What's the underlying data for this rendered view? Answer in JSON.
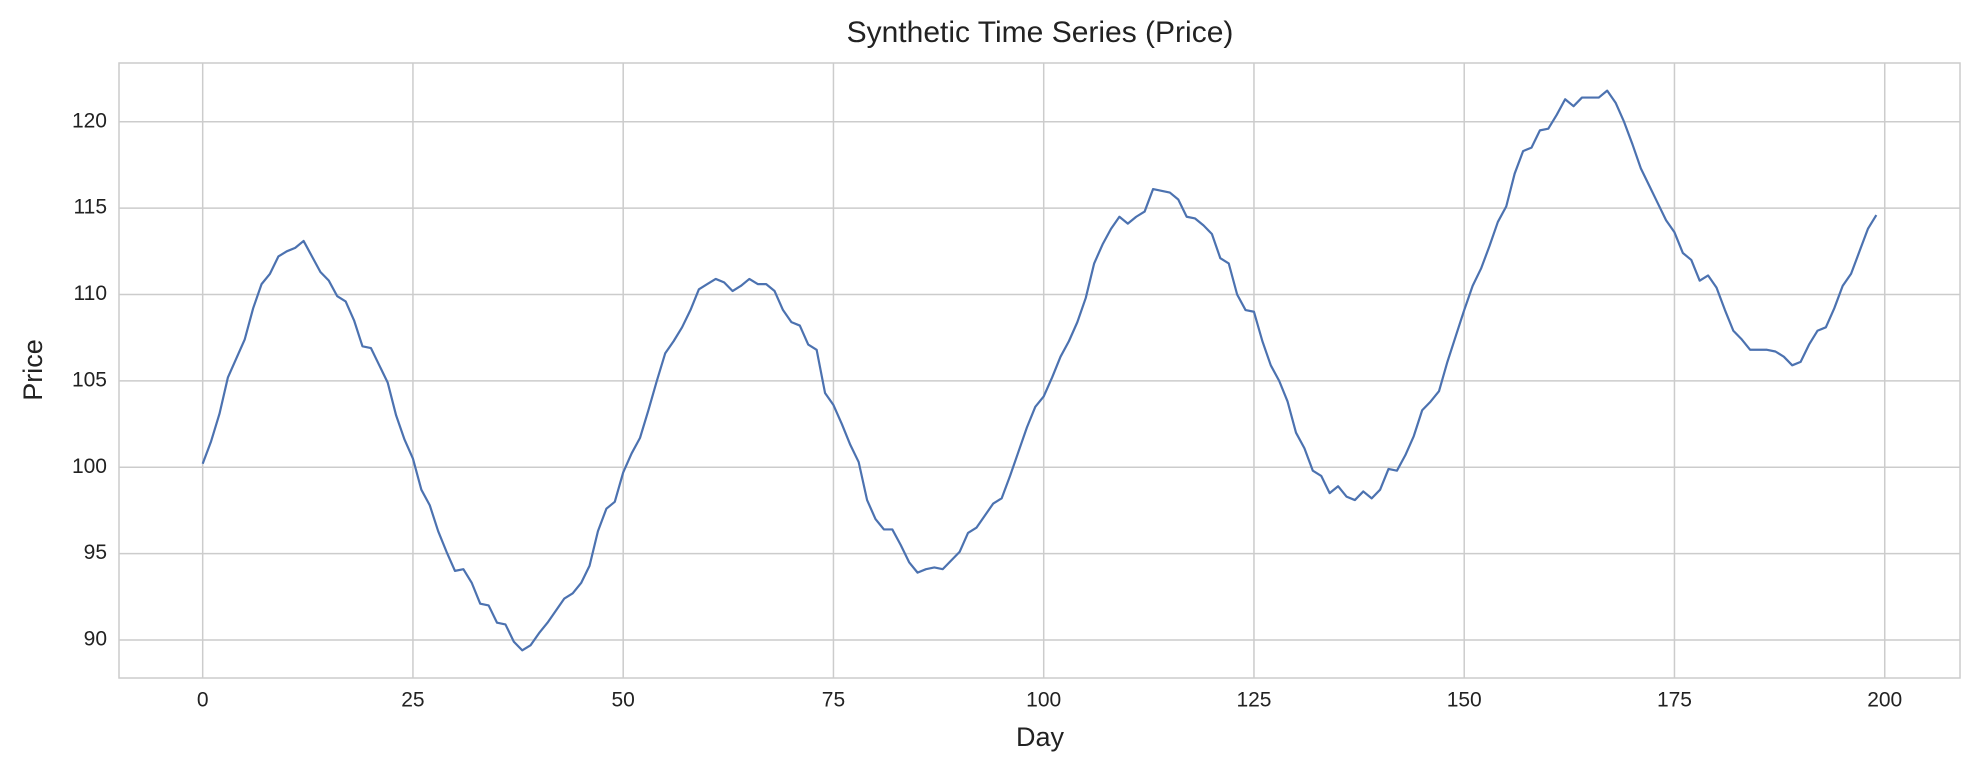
{
  "chart_data": {
    "type": "line",
    "title": "Synthetic Time Series (Price)",
    "x_label": "Day",
    "y_label": "Price",
    "x": [
      0,
      1,
      2,
      3,
      4,
      5,
      6,
      7,
      8,
      9,
      10,
      11,
      12,
      13,
      14,
      15,
      16,
      17,
      18,
      19,
      20,
      21,
      22,
      23,
      24,
      25,
      26,
      27,
      28,
      29,
      30,
      31,
      32,
      33,
      34,
      35,
      36,
      37,
      38,
      39,
      40,
      41,
      42,
      43,
      44,
      45,
      46,
      47,
      48,
      49,
      50,
      51,
      52,
      53,
      54,
      55,
      56,
      57,
      58,
      59,
      60,
      61,
      62,
      63,
      64,
      65,
      66,
      67,
      68,
      69,
      70,
      71,
      72,
      73,
      74,
      75,
      76,
      77,
      78,
      79,
      80,
      81,
      82,
      83,
      84,
      85,
      86,
      87,
      88,
      89,
      90,
      91,
      92,
      93,
      94,
      95,
      96,
      97,
      98,
      99,
      100,
      101,
      102,
      103,
      104,
      105,
      106,
      107,
      108,
      109,
      110,
      111,
      112,
      113,
      114,
      115,
      116,
      117,
      118,
      119,
      120,
      121,
      122,
      123,
      124,
      125,
      126,
      127,
      128,
      129,
      130,
      131,
      132,
      133,
      134,
      135,
      136,
      137,
      138,
      139,
      140,
      141,
      142,
      143,
      144,
      145,
      146,
      147,
      148,
      149,
      150,
      151,
      152,
      153,
      154,
      155,
      156,
      157,
      158,
      159,
      160,
      161,
      162,
      163,
      164,
      165,
      166,
      167,
      168,
      169,
      170,
      171,
      172,
      173,
      174,
      175,
      176,
      177,
      178,
      179,
      180,
      181,
      182,
      183,
      184,
      185,
      186,
      187,
      188,
      189,
      190,
      191,
      192,
      193,
      194,
      195,
      196,
      197,
      198,
      199
    ],
    "series": [
      {
        "name": "Price",
        "color": "#4c72b0",
        "values": [
          100.2,
          101.5,
          103.1,
          105.2,
          106.3,
          107.4,
          109.2,
          110.6,
          111.2,
          112.2,
          112.5,
          112.7,
          113.1,
          112.2,
          111.3,
          110.8,
          109.9,
          109.6,
          108.5,
          107.0,
          106.9,
          105.9,
          104.9,
          103.0,
          101.6,
          100.5,
          98.7,
          97.8,
          96.3,
          95.1,
          94.0,
          94.1,
          93.3,
          92.1,
          92.0,
          91.0,
          90.9,
          89.9,
          89.4,
          89.7,
          90.4,
          91.0,
          91.7,
          92.4,
          92.7,
          93.3,
          94.3,
          96.3,
          97.6,
          98.0,
          99.7,
          100.8,
          101.7,
          103.3,
          105.0,
          106.6,
          107.3,
          108.1,
          109.1,
          110.3,
          110.6,
          110.9,
          110.7,
          110.2,
          110.5,
          110.9,
          110.6,
          110.6,
          110.2,
          109.1,
          108.4,
          108.2,
          107.1,
          106.8,
          104.3,
          103.6,
          102.5,
          101.3,
          100.3,
          98.1,
          97.0,
          96.4,
          96.4,
          95.5,
          94.5,
          93.9,
          94.1,
          94.2,
          94.1,
          94.6,
          95.1,
          96.2,
          96.5,
          97.2,
          97.9,
          98.2,
          99.5,
          100.9,
          102.3,
          103.5,
          104.1,
          105.2,
          106.4,
          107.3,
          108.4,
          109.8,
          111.8,
          112.9,
          113.8,
          114.5,
          114.1,
          114.5,
          114.8,
          116.1,
          116.0,
          115.9,
          115.5,
          114.5,
          114.4,
          114.0,
          113.5,
          112.1,
          111.8,
          110.0,
          109.1,
          109.0,
          107.3,
          105.9,
          105.0,
          103.8,
          102.0,
          101.1,
          99.8,
          99.5,
          98.5,
          98.9,
          98.3,
          98.1,
          98.6,
          98.2,
          98.7,
          99.9,
          99.8,
          100.7,
          101.8,
          103.3,
          103.8,
          104.4,
          106.1,
          107.6,
          109.1,
          110.5,
          111.5,
          112.8,
          114.2,
          115.1,
          117.0,
          118.3,
          118.5,
          119.5,
          119.6,
          120.4,
          121.3,
          120.9,
          121.4,
          121.4,
          121.4,
          121.8,
          121.1,
          120.0,
          118.7,
          117.3,
          116.3,
          115.3,
          114.3,
          113.6,
          112.4,
          112.0,
          110.8,
          111.1,
          110.4,
          109.1,
          107.9,
          107.4,
          106.8,
          106.8,
          106.8,
          106.7,
          106.4,
          105.9,
          106.1,
          107.1,
          107.9,
          108.1,
          109.2,
          110.5,
          111.2,
          112.5,
          113.8,
          114.6
        ]
      }
    ],
    "xlim": [
      -9.95,
      208.95
    ],
    "ylim": [
      87.8,
      123.4
    ],
    "xticks": [
      0,
      25,
      50,
      75,
      100,
      125,
      150,
      175,
      200
    ],
    "yticks": [
      90,
      95,
      100,
      105,
      110,
      115,
      120
    ],
    "grid": true
  }
}
